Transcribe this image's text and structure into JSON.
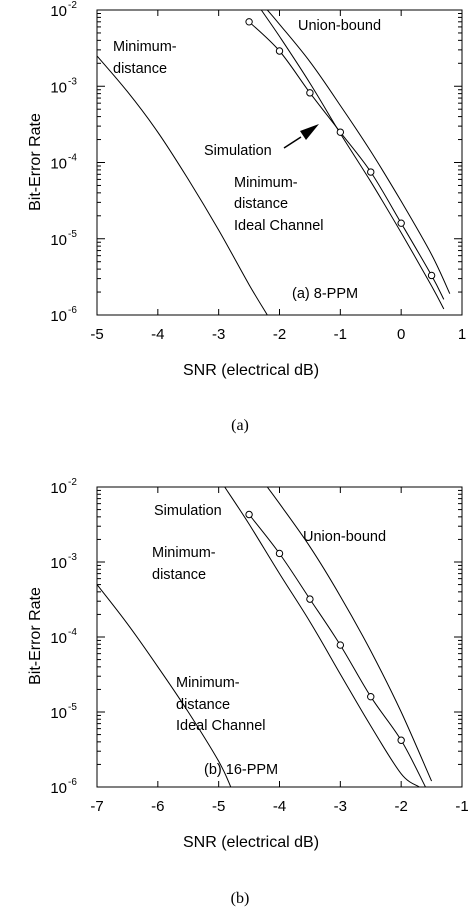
{
  "chart_data": [
    {
      "type": "line",
      "caption": "(a)",
      "xlabel": "SNR (electrical dB)",
      "ylabel": "Bit-Error Rate",
      "xlim": [
        -5,
        1
      ],
      "ylim": [
        1e-06,
        0.01
      ],
      "yscale": "log",
      "xticks": [
        "-5",
        "-4",
        "-3",
        "-2",
        "-1",
        "0",
        "1"
      ],
      "yticks": [
        {
          "base": "10",
          "exp": "-6"
        },
        {
          "base": "10",
          "exp": "-5"
        },
        {
          "base": "10",
          "exp": "-4"
        },
        {
          "base": "10",
          "exp": "-3"
        },
        {
          "base": "10",
          "exp": "-2"
        }
      ],
      "panel_label": "(a) 8-PPM",
      "series": [
        {
          "name": "Union-bound",
          "x": [
            -2.2,
            -2.0,
            -1.5,
            -1.0,
            -0.5,
            0.0,
            0.5,
            0.8
          ],
          "y": [
            0.01,
            0.0065,
            0.0021,
            0.00056,
            0.00014,
            3.1e-05,
            6.2e-06,
            1.9e-06
          ]
        },
        {
          "name": "Simulation",
          "x": [
            -2.5,
            -2.0,
            -1.5,
            -1.0,
            -0.5,
            0.0,
            0.5,
            0.7
          ],
          "y": [
            0.007,
            0.0029,
            0.00082,
            0.00025,
            7.5e-05,
            1.6e-05,
            3.3e-06,
            1.6e-06
          ],
          "markers": true
        },
        {
          "name": "Minimum-distance",
          "x": [
            -2.3,
            -2.0,
            -1.5,
            -1.0,
            -0.5,
            0.0,
            0.5,
            0.7
          ],
          "y": [
            0.01,
            0.0045,
            0.0011,
            0.00024,
            5.6e-05,
            1.2e-05,
            2.4e-06,
            1.2e-06
          ]
        },
        {
          "name": "Minimum-distance Ideal Channel",
          "x": [
            -5.0,
            -4.5,
            -4.0,
            -3.5,
            -3.0,
            -2.5,
            -2.2
          ],
          "y": [
            0.0025,
            0.00085,
            0.00025,
            6e-05,
            1.3e-05,
            2.5e-06,
            1e-06
          ]
        }
      ],
      "annotations": [
        "Minimum-",
        "distance",
        "Union-bound",
        "Simulation",
        "Minimum-",
        "distance",
        "Ideal Channel"
      ]
    },
    {
      "type": "line",
      "caption": "(b)",
      "xlabel": "SNR (electrical dB)",
      "ylabel": "Bit-Error Rate",
      "xlim": [
        -7,
        -1
      ],
      "ylim": [
        1e-06,
        0.01
      ],
      "yscale": "log",
      "xticks": [
        "-7",
        "-6",
        "-5",
        "-4",
        "-3",
        "-2",
        "-1"
      ],
      "yticks": [
        {
          "base": "10",
          "exp": "-6"
        },
        {
          "base": "10",
          "exp": "-5"
        },
        {
          "base": "10",
          "exp": "-4"
        },
        {
          "base": "10",
          "exp": "-3"
        },
        {
          "base": "10",
          "exp": "-2"
        }
      ],
      "panel_label": "(b) 16-PPM",
      "series": [
        {
          "name": "Union-bound",
          "x": [
            -4.2,
            -4.0,
            -3.5,
            -3.0,
            -2.5,
            -2.0,
            -1.5
          ],
          "y": [
            0.01,
            0.006,
            0.0016,
            0.00035,
            6.5e-05,
            1e-05,
            1.2e-06
          ]
        },
        {
          "name": "Simulation",
          "x": [
            -4.5,
            -4.0,
            -3.5,
            -3.0,
            -2.5,
            -2.0,
            -1.6
          ],
          "y": [
            0.0043,
            0.0013,
            0.00032,
            7.8e-05,
            1.6e-05,
            4.2e-06,
            1e-06
          ],
          "markers": true
        },
        {
          "name": "Minimum-distance",
          "x": [
            -4.9,
            -4.5,
            -4.0,
            -3.5,
            -3.0,
            -2.5,
            -2.0,
            -1.7
          ],
          "y": [
            0.01,
            0.0032,
            0.0007,
            0.00016,
            3.2e-05,
            6.5e-06,
            1.5e-06,
            1e-06
          ]
        },
        {
          "name": "Minimum-distance Ideal Channel",
          "x": [
            -7.0,
            -6.5,
            -6.0,
            -5.5,
            -5.0,
            -4.8
          ],
          "y": [
            0.0005,
            0.00015,
            4e-05,
            1e-05,
            2.2e-06,
            1e-06
          ]
        }
      ],
      "annotations": [
        "Simulation",
        "Union-bound",
        "Minimum-",
        "distance",
        "Minimum-",
        "distance",
        "Ideal Channel"
      ]
    }
  ]
}
